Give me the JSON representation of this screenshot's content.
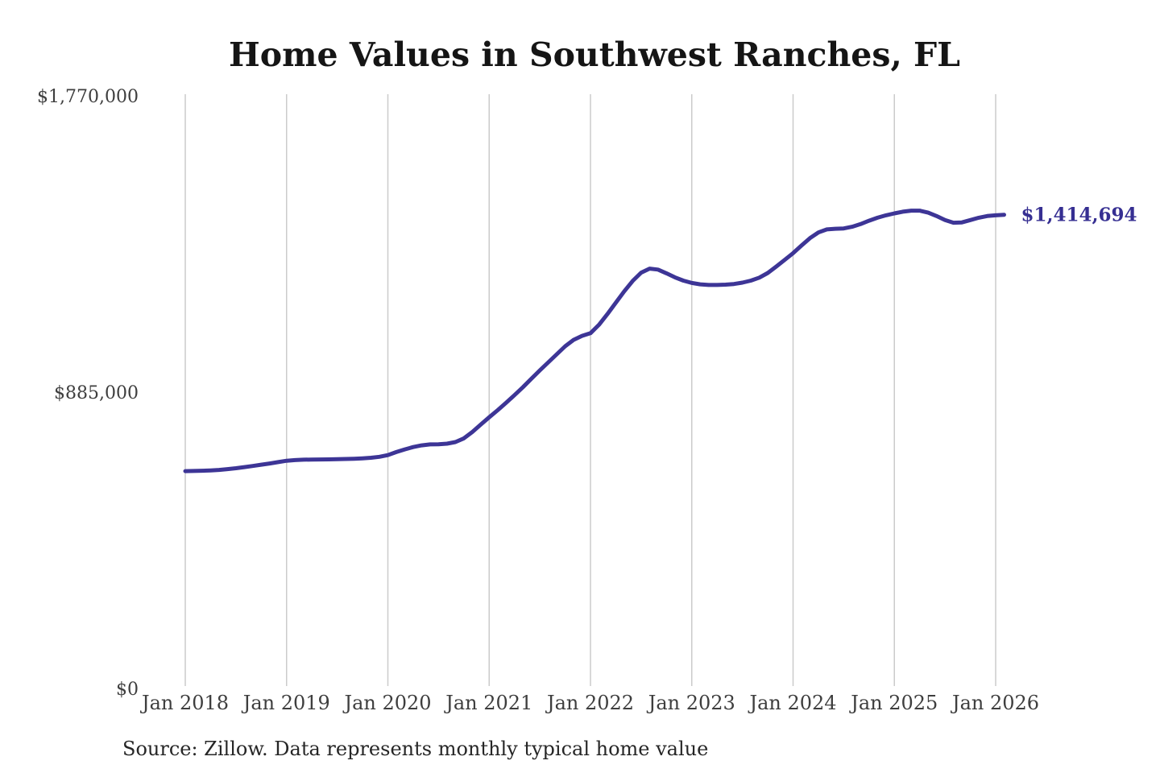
{
  "title": "Home Values in Southwest Ranches, FL",
  "source_note": "Source: Zillow. Data represents monthly typical home value",
  "colors": {
    "background": "#ffffff",
    "line": "#3d3596",
    "grid": "#cbcbcb",
    "title_text": "#151515",
    "tick_text": "#3e3e3e",
    "source_text": "#262626",
    "final_label_text": "#362f92"
  },
  "chart_data": {
    "type": "line",
    "title": "Home Values in Southwest Ranches, FL",
    "xlabel": "",
    "ylabel": "",
    "x_start_month": "2018-01",
    "x_interval": "monthly",
    "x_tick_labels": [
      "Jan 2018",
      "Jan 2019",
      "Jan 2020",
      "Jan 2021",
      "Jan 2022",
      "Jan 2023",
      "Jan 2024",
      "Jan 2025",
      "Jan 2026"
    ],
    "y_ticks": [
      {
        "label": "$0",
        "value": 0
      },
      {
        "label": "$885,000",
        "value": 885000
      },
      {
        "label": "$1,770,000",
        "value": 1770000
      }
    ],
    "ylim": [
      0,
      1770000
    ],
    "grid": "vertical-only",
    "legend": "none",
    "annotation": "$1,414,694",
    "final_value": 1414694,
    "final_value_label": "$1,414,694",
    "series": [
      {
        "name": "Monthly typical home value",
        "values": [
          649000,
          649500,
          650200,
          651200,
          652800,
          655000,
          657800,
          661000,
          664500,
          668200,
          672000,
          676000,
          680000,
          682000,
          683200,
          683800,
          684000,
          684300,
          684800,
          685300,
          686000,
          687200,
          689000,
          692000,
          697000,
          706000,
          714000,
          721000,
          726000,
          729000,
          729500,
          731000,
          736000,
          747000,
          766000,
          788000,
          810000,
          831000,
          853000,
          876000,
          900000,
          925000,
          950000,
          974000,
          998000,
          1022000,
          1041000,
          1053000,
          1061000,
          1086000,
          1118000,
          1152000,
          1186000,
          1217000,
          1242000,
          1254000,
          1251000,
          1240000,
          1228000,
          1218000,
          1211000,
          1207000,
          1205000,
          1205000,
          1206000,
          1208000,
          1212000,
          1218000,
          1227000,
          1241000,
          1260000,
          1280000,
          1300000,
          1323000,
          1345000,
          1362000,
          1371000,
          1373000,
          1374000,
          1379000,
          1387000,
          1397000,
          1406000,
          1413000,
          1419000,
          1424000,
          1427000,
          1427000,
          1421000,
          1411000,
          1399000,
          1391000,
          1392000,
          1399000,
          1406000,
          1411000,
          1413000,
          1414694
        ]
      }
    ]
  }
}
